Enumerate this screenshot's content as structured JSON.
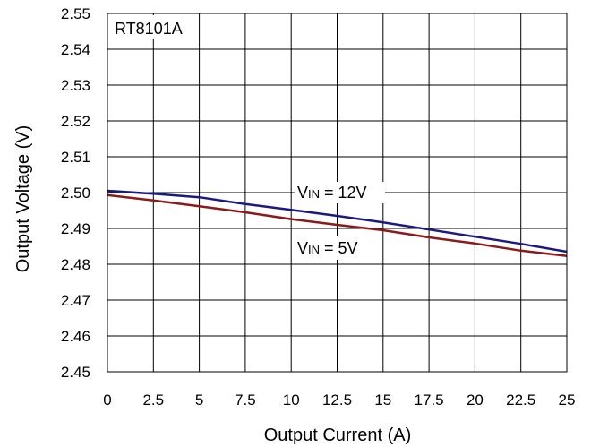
{
  "chart_data": {
    "type": "line",
    "title": "",
    "xlabel": "Output Current (A)",
    "ylabel": "Output Voltage (V)",
    "xlim": [
      0,
      25
    ],
    "ylim": [
      2.45,
      2.55
    ],
    "xticks": [
      "0",
      "2.5",
      "5",
      "7.5",
      "10",
      "12.5",
      "15",
      "17.5",
      "20",
      "22.5",
      "25"
    ],
    "yticks": [
      "2.45",
      "2.46",
      "2.47",
      "2.48",
      "2.49",
      "2.50",
      "2.51",
      "2.52",
      "2.53",
      "2.54",
      "2.55"
    ],
    "grid": true,
    "legend": "none",
    "annotations": {
      "device": "RT8101A",
      "vin12": {
        "main": "V",
        "sub": "IN",
        "rest": " = 12V"
      },
      "vin5": {
        "main": "V",
        "sub": "IN",
        "rest": " = 5V"
      }
    },
    "series": [
      {
        "label": "VIN = 12V",
        "color": "#1a1a80",
        "x": [
          0,
          2.5,
          5,
          7.5,
          10,
          12.5,
          15,
          17.5,
          20,
          22.5,
          25
        ],
        "y": [
          2.5005,
          2.4997,
          2.4987,
          2.4968,
          2.4952,
          2.4935,
          2.4917,
          2.4897,
          2.4877,
          2.4857,
          2.4835
        ]
      },
      {
        "label": "VIN = 5V",
        "color": "#8b1a1a",
        "x": [
          0,
          2.5,
          5,
          7.5,
          10,
          12.5,
          15,
          17.5,
          20,
          22.5,
          25
        ],
        "y": [
          2.4993,
          2.4978,
          2.4962,
          2.4945,
          2.4926,
          2.491,
          2.4895,
          2.4875,
          2.4858,
          2.4838,
          2.4823
        ]
      }
    ]
  }
}
